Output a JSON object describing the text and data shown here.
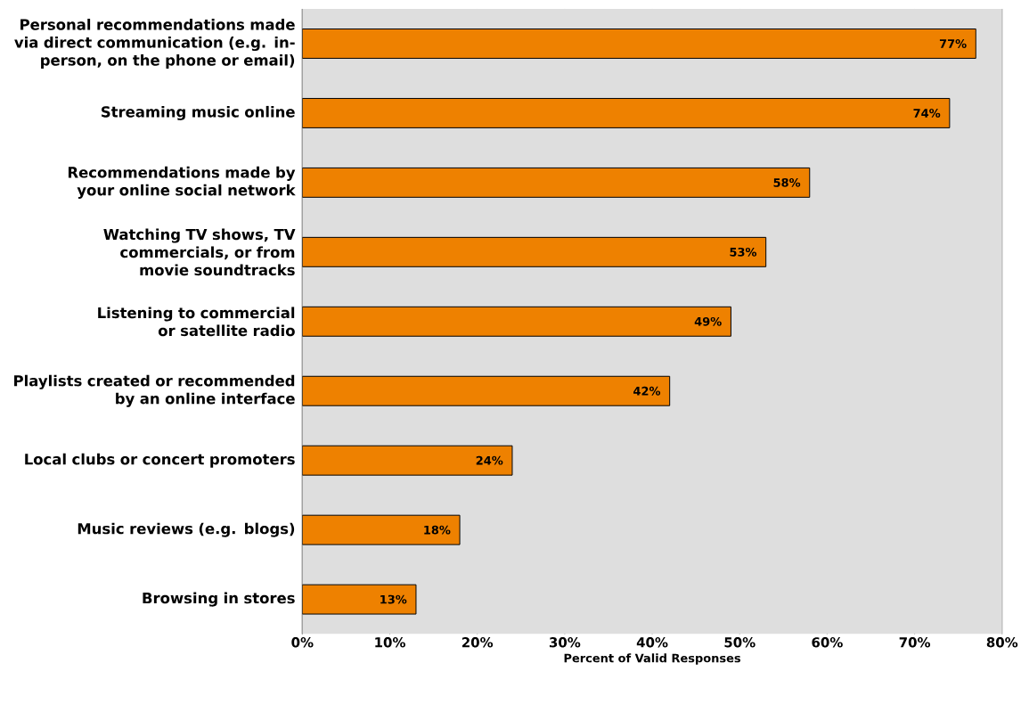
{
  "chart_data": {
    "type": "bar",
    "orientation": "horizontal",
    "xlabel": "Percent of Valid Responses",
    "categories": [
      "Personal recommendations made via direct communication (e.g. in-person, on the phone or email)",
      "Streaming music online",
      "Recommendations made by your online social network",
      "Watching TV shows, TV commercials, or from movie soundtracks",
      "Listening to commercial or satellite radio",
      "Playlists created or recommended by an online interface",
      "Local clubs or concert promoters",
      "Music reviews (e.g. blogs)",
      "Browsing in stores"
    ],
    "values": [
      77,
      74,
      58,
      53,
      49,
      42,
      24,
      18,
      13
    ],
    "value_labels": [
      "77%",
      "74%",
      "58%",
      "53%",
      "49%",
      "42%",
      "24%",
      "18%",
      "13%"
    ],
    "color": "#ee8100",
    "xlim": [
      0,
      80
    ],
    "xticks": [
      {
        "value": 0,
        "label": "0%"
      },
      {
        "value": 10,
        "label": "10%"
      },
      {
        "value": 20,
        "label": "20%"
      },
      {
        "value": 30,
        "label": "30%"
      },
      {
        "value": 40,
        "label": "40%"
      },
      {
        "value": 50,
        "label": "50%"
      },
      {
        "value": 60,
        "label": "60%"
      },
      {
        "value": 70,
        "label": "70%"
      },
      {
        "value": 80,
        "label": "80%"
      }
    ],
    "grid": "x"
  }
}
